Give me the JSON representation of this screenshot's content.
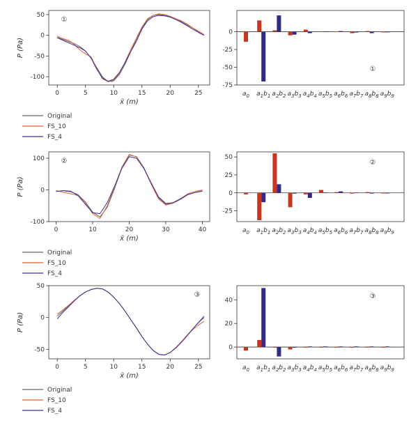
{
  "figure": {
    "colors": {
      "original": "#666666",
      "fs10": "#e0622a",
      "fs4": "#3a2fa0",
      "bar_a": "#c8361e",
      "bar_b": "#2f2a8c"
    },
    "legend": [
      "Original",
      "FS_10",
      "FS_4"
    ]
  },
  "chart_data": [
    {
      "id": "line-1",
      "type": "line",
      "panel_badge": "①",
      "xlabel": "x̃ (m)",
      "ylabel": "P (Pa)",
      "xlim": [
        -1.5,
        27
      ],
      "ylim": [
        -120,
        60
      ],
      "xticks": [
        0,
        5,
        10,
        15,
        20,
        25
      ],
      "yticks": [
        50,
        0,
        -50,
        -100
      ],
      "series": [
        {
          "name": "Original",
          "x": [
            0,
            1,
            2,
            3,
            4,
            5,
            6,
            7,
            8,
            9,
            10,
            11,
            12,
            13,
            14,
            15,
            16,
            17,
            18,
            19,
            20,
            21,
            22,
            23,
            24,
            25,
            26
          ],
          "y": [
            -5,
            -10,
            -15,
            -20,
            -27,
            -38,
            -55,
            -78,
            -100,
            -112,
            -110,
            -95,
            -70,
            -40,
            -10,
            18,
            38,
            48,
            50,
            48,
            45,
            40,
            33,
            25,
            18,
            8,
            0
          ]
        },
        {
          "name": "FS_10",
          "x": [
            0,
            1,
            2,
            3,
            4,
            5,
            6,
            7,
            8,
            9,
            10,
            11,
            12,
            13,
            14,
            15,
            16,
            17,
            18,
            19,
            20,
            21,
            22,
            23,
            24,
            25,
            26
          ],
          "y": [
            -2,
            -8,
            -12,
            -22,
            -35,
            -45,
            -52,
            -80,
            -105,
            -112,
            -108,
            -92,
            -65,
            -35,
            -8,
            20,
            40,
            48,
            52,
            50,
            46,
            40,
            35,
            27,
            18,
            10,
            2
          ]
        },
        {
          "name": "FS_4",
          "x": [
            0,
            1,
            2,
            3,
            4,
            5,
            6,
            7,
            8,
            9,
            10,
            11,
            12,
            13,
            14,
            15,
            16,
            17,
            18,
            19,
            20,
            21,
            22,
            23,
            24,
            25,
            26
          ],
          "y": [
            -6,
            -12,
            -18,
            -24,
            -30,
            -38,
            -55,
            -82,
            -103,
            -111,
            -106,
            -90,
            -66,
            -40,
            -15,
            15,
            35,
            45,
            48,
            47,
            44,
            38,
            31,
            23,
            15,
            7,
            0
          ]
        }
      ]
    },
    {
      "id": "bar-1",
      "type": "bar",
      "panel_badge": "①",
      "ylim": [
        -75,
        30
      ],
      "yticks": [
        0,
        -25,
        -50,
        -75
      ],
      "categories": [
        "a0",
        "a1b1",
        "a2b2",
        "a3b3",
        "a4b4",
        "a5b5",
        "a6b6",
        "a7b7",
        "a8b8",
        "a9b9"
      ],
      "series": [
        {
          "name": "a",
          "values": [
            -14,
            16,
            2,
            -5,
            3,
            0.5,
            0.5,
            -2,
            1,
            0
          ]
        },
        {
          "name": "b",
          "values": [
            null,
            -70,
            23,
            -4,
            -2,
            0.5,
            1,
            -1,
            -2,
            0
          ]
        }
      ]
    },
    {
      "id": "line-2",
      "type": "line",
      "panel_badge": "②",
      "xlabel": "x̃ (m)",
      "ylabel": "P (Pa)",
      "xlim": [
        -2,
        42
      ],
      "ylim": [
        -100,
        120
      ],
      "xticks": [
        0,
        10,
        20,
        30,
        40
      ],
      "yticks": [
        100,
        0,
        -100
      ],
      "series": [
        {
          "name": "Original",
          "x": [
            0,
            2,
            4,
            6,
            8,
            10,
            12,
            14,
            16,
            18,
            20,
            22,
            24,
            26,
            28,
            30,
            32,
            34,
            36,
            38,
            40
          ],
          "y": [
            -5,
            -3,
            -6,
            -15,
            -38,
            -70,
            -85,
            -55,
            5,
            70,
            110,
            105,
            70,
            20,
            -25,
            -45,
            -42,
            -30,
            -15,
            -8,
            -3
          ]
        },
        {
          "name": "FS_10",
          "x": [
            0,
            2,
            4,
            6,
            8,
            10,
            12,
            14,
            16,
            18,
            20,
            22,
            24,
            26,
            28,
            30,
            32,
            34,
            36,
            38,
            40
          ],
          "y": [
            -2,
            -8,
            -12,
            -18,
            -40,
            -75,
            -90,
            -50,
            10,
            72,
            112,
            104,
            68,
            18,
            -28,
            -48,
            -42,
            -28,
            -12,
            -5,
            0
          ]
        },
        {
          "name": "FS_4",
          "x": [
            0,
            2,
            4,
            6,
            8,
            10,
            12,
            14,
            16,
            18,
            20,
            22,
            24,
            26,
            28,
            30,
            32,
            34,
            36,
            38,
            40
          ],
          "y": [
            -5,
            -2,
            -4,
            -18,
            -45,
            -72,
            -75,
            -40,
            12,
            68,
            105,
            100,
            68,
            22,
            -22,
            -43,
            -40,
            -28,
            -15,
            -8,
            -4
          ]
        }
      ]
    },
    {
      "id": "bar-2",
      "type": "bar",
      "panel_badge": "②",
      "ylim": [
        -40,
        57
      ],
      "yticks": [
        50,
        25,
        0,
        -25
      ],
      "categories": [
        "a0",
        "a1b1",
        "a2b2",
        "a3b3",
        "a4b4",
        "a5b5",
        "a6b6",
        "a7b7",
        "a8b8",
        "a9b9"
      ],
      "series": [
        {
          "name": "a",
          "values": [
            -2,
            -38,
            55,
            -20,
            -2,
            4,
            1,
            -1,
            1,
            0
          ]
        },
        {
          "name": "b",
          "values": [
            null,
            -13,
            12,
            -1,
            -7,
            0.5,
            2,
            0.5,
            -1,
            0
          ]
        }
      ]
    },
    {
      "id": "line-3",
      "type": "line",
      "panel_badge": "③",
      "xlabel": "x̃ (m)",
      "ylabel": "P (Pa)",
      "xlim": [
        -1.5,
        27
      ],
      "ylim": [
        -65,
        50
      ],
      "xticks": [
        0,
        5,
        10,
        15,
        20,
        25
      ],
      "yticks": [
        50,
        0,
        -50
      ],
      "series": [
        {
          "name": "Original",
          "x": [
            0,
            1,
            2,
            3,
            4,
            5,
            6,
            7,
            8,
            9,
            10,
            11,
            12,
            13,
            14,
            15,
            16,
            17,
            18,
            19,
            20,
            21,
            22,
            23,
            24,
            25,
            26
          ],
          "y": [
            2,
            10,
            18,
            26,
            34,
            40,
            44,
            46,
            45,
            40,
            32,
            22,
            10,
            -3,
            -16,
            -30,
            -42,
            -52,
            -58,
            -59,
            -55,
            -48,
            -38,
            -28,
            -18,
            -8,
            0
          ]
        },
        {
          "name": "FS_10",
          "x": [
            0,
            1,
            2,
            3,
            4,
            5,
            6,
            7,
            8,
            9,
            10,
            11,
            12,
            13,
            14,
            15,
            16,
            17,
            18,
            19,
            20,
            21,
            22,
            23,
            24,
            25,
            26
          ],
          "y": [
            5,
            12,
            19,
            27,
            34,
            40,
            44,
            46,
            45,
            40,
            32,
            22,
            10,
            -3,
            -16,
            -30,
            -42,
            -52,
            -58,
            -59,
            -55,
            -47,
            -38,
            -28,
            -19,
            -12,
            -6
          ]
        },
        {
          "name": "FS_4",
          "x": [
            0,
            1,
            2,
            3,
            4,
            5,
            6,
            7,
            8,
            9,
            10,
            11,
            12,
            13,
            14,
            15,
            16,
            17,
            18,
            19,
            20,
            21,
            22,
            23,
            24,
            25,
            26
          ],
          "y": [
            -2,
            8,
            17,
            26,
            34,
            40,
            44,
            46,
            45,
            40,
            32,
            22,
            10,
            -3,
            -16,
            -30,
            -42,
            -52,
            -58,
            -59,
            -55,
            -48,
            -39,
            -29,
            -18,
            -8,
            2
          ]
        }
      ]
    },
    {
      "id": "bar-3",
      "type": "bar",
      "panel_badge": "③",
      "ylim": [
        -10,
        52
      ],
      "yticks": [
        40,
        20,
        0
      ],
      "categories": [
        "a0",
        "a1b1",
        "a2b2",
        "a3b3",
        "a4b4",
        "a5b5",
        "a6b6",
        "a7b7",
        "a8b8",
        "a9b9"
      ],
      "series": [
        {
          "name": "a",
          "values": [
            -3,
            6,
            0,
            -2,
            0,
            0,
            0,
            0,
            0,
            0
          ]
        },
        {
          "name": "b",
          "values": [
            null,
            50,
            -8,
            0,
            0.5,
            0.5,
            0.5,
            0.5,
            0.5,
            0.5
          ]
        }
      ]
    }
  ]
}
